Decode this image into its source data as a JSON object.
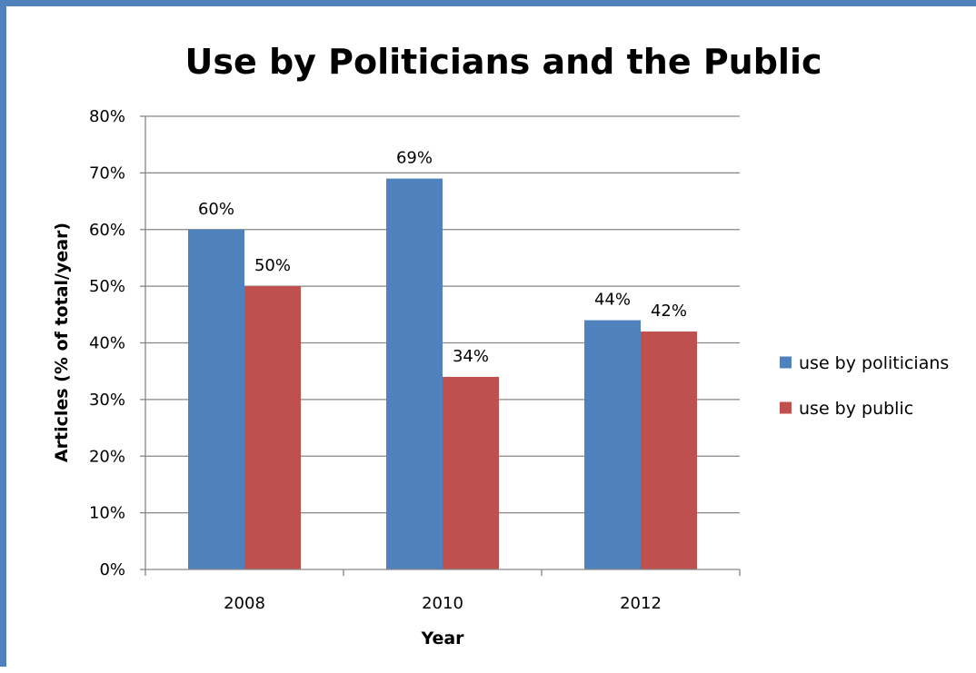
{
  "chart_data": {
    "type": "bar",
    "title": "Use by Politicians and the Public",
    "xlabel": "Year",
    "ylabel": "Articles (% of total/year)",
    "categories": [
      "2008",
      "2010",
      "2012"
    ],
    "series": [
      {
        "name": "use by politicians",
        "color": "#4f81bd",
        "values": [
          60,
          69,
          44
        ],
        "labels": [
          "60%",
          "69%",
          "44%"
        ]
      },
      {
        "name": "use by public",
        "color": "#c0504d",
        "values": [
          50,
          34,
          42
        ],
        "labels": [
          "50%",
          "34%",
          "42%"
        ]
      }
    ],
    "ylim": [
      0,
      80
    ],
    "yticks": [
      0,
      10,
      20,
      30,
      40,
      50,
      60,
      70,
      80
    ],
    "ytick_labels": [
      "0%",
      "10%",
      "20%",
      "30%",
      "40%",
      "50%",
      "60%",
      "70%",
      "80%"
    ],
    "grid": true,
    "legend_position": "right"
  },
  "colors": {
    "frame_border": "#4f81bd"
  }
}
